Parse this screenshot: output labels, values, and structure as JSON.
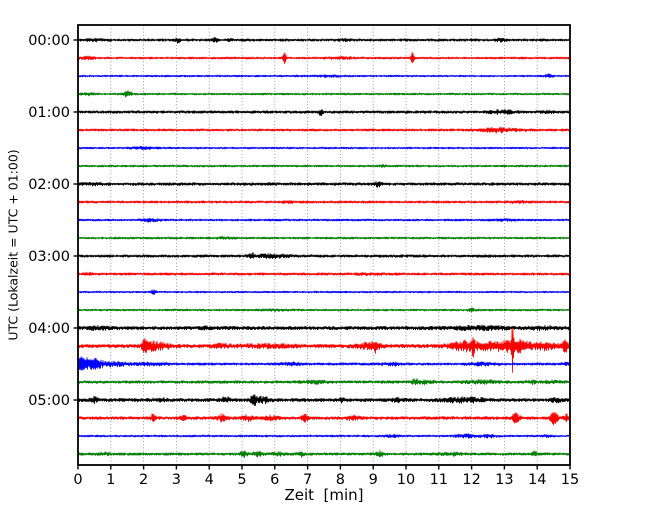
{
  "figure": {
    "background": "#ffffff"
  },
  "chart_data": {
    "type": "line",
    "subtype": "helicorder-seismogram-drum-plot",
    "title": "",
    "xlabel": "Zeit  [min]",
    "ylabel": "UTC (Lokalzeit = UTC + 01:00)",
    "xlim": [
      0,
      15
    ],
    "minutes_per_line": 15,
    "x_ticks": [
      0,
      1,
      2,
      3,
      4,
      5,
      6,
      7,
      8,
      9,
      10,
      11,
      12,
      13,
      14,
      15
    ],
    "y_tick_labels": [
      "00:00",
      "01:00",
      "02:00",
      "03:00",
      "04:00",
      "05:00"
    ],
    "grid": {
      "vertical": true,
      "horizontal": false,
      "style": "dotted",
      "color": "#8c8c8c"
    },
    "legend": "none",
    "trace_color_cycle": [
      "#000000",
      "#ff0000",
      "#0000ff",
      "#007f00"
    ],
    "traces": [
      {
        "start": "00:00",
        "color": "#000000",
        "base_amp": 1.25,
        "events": [
          [
            0.5,
            0.8,
            0.4
          ],
          [
            3.05,
            2.3,
            0.08
          ],
          [
            4.2,
            2.2,
            0.1
          ],
          [
            4.65,
            1.2,
            0.08
          ],
          [
            8.2,
            0.8,
            0.2
          ],
          [
            12.9,
            0.9,
            0.2
          ]
        ]
      },
      {
        "start": "00:15",
        "color": "#ff0000",
        "base_amp": 1.05,
        "events": [
          [
            0.3,
            1.2,
            0.2
          ],
          [
            6.3,
            6.0,
            0.05
          ],
          [
            8.0,
            0.8,
            0.4
          ],
          [
            10.2,
            5.5,
            0.05
          ]
        ]
      },
      {
        "start": "00:30",
        "color": "#0000ff",
        "base_amp": 0.9,
        "events": [
          [
            7.5,
            0.6,
            0.6
          ],
          [
            14.35,
            2.2,
            0.1
          ]
        ]
      },
      {
        "start": "00:45",
        "color": "#007f00",
        "base_amp": 1.0,
        "events": [
          [
            0.3,
            0.9,
            0.2
          ],
          [
            1.5,
            3.0,
            0.12
          ]
        ]
      },
      {
        "start": "01:00",
        "color": "#000000",
        "base_amp": 1.35,
        "events": [
          [
            7.4,
            3.2,
            0.06
          ],
          [
            12.9,
            1.4,
            0.35
          ],
          [
            14.3,
            0.9,
            0.2
          ]
        ]
      },
      {
        "start": "01:15",
        "color": "#ff0000",
        "base_amp": 1.15,
        "events": [
          [
            12.8,
            1.9,
            0.6
          ]
        ]
      },
      {
        "start": "01:30",
        "color": "#0000ff",
        "base_amp": 0.95,
        "events": [
          [
            2.0,
            0.8,
            0.4
          ]
        ]
      },
      {
        "start": "01:45",
        "color": "#007f00",
        "base_amp": 1.0,
        "events": [
          [
            9.3,
            0.9,
            0.12
          ]
        ]
      },
      {
        "start": "02:00",
        "color": "#000000",
        "base_amp": 1.45,
        "events": [
          [
            0.4,
            0.7,
            0.3
          ],
          [
            9.15,
            2.6,
            0.08
          ]
        ]
      },
      {
        "start": "02:15",
        "color": "#ff0000",
        "base_amp": 1.15,
        "events": [
          [
            6.4,
            1.0,
            0.15
          ],
          [
            13.5,
            0.7,
            0.3
          ]
        ]
      },
      {
        "start": "02:30",
        "color": "#0000ff",
        "base_amp": 1.0,
        "events": [
          [
            2.2,
            1.2,
            0.3
          ],
          [
            13.0,
            0.6,
            0.4
          ]
        ]
      },
      {
        "start": "02:45",
        "color": "#007f00",
        "base_amp": 1.05,
        "events": [
          [
            4.5,
            0.6,
            0.3
          ]
        ]
      },
      {
        "start": "03:00",
        "color": "#000000",
        "base_amp": 1.35,
        "events": [
          [
            5.3,
            3.3,
            0.07
          ],
          [
            5.9,
            1.3,
            0.5
          ]
        ]
      },
      {
        "start": "03:15",
        "color": "#ff0000",
        "base_amp": 1.2,
        "events": [
          [
            0.3,
            0.9,
            0.15
          ],
          [
            9.0,
            0.6,
            0.5
          ]
        ]
      },
      {
        "start": "03:30",
        "color": "#0000ff",
        "base_amp": 0.9,
        "events": [
          [
            2.3,
            2.8,
            0.08
          ]
        ]
      },
      {
        "start": "03:45",
        "color": "#007f00",
        "base_amp": 1.0,
        "events": [
          [
            6.0,
            0.6,
            0.4
          ],
          [
            12.0,
            1.7,
            0.1
          ]
        ]
      },
      {
        "start": "04:00",
        "color": "#000000",
        "base_amp": 1.8,
        "events": [
          [
            0.6,
            1.1,
            0.3
          ],
          [
            3.9,
            1.2,
            0.15
          ],
          [
            12.2,
            1.4,
            0.8
          ],
          [
            14.2,
            1.1,
            0.4
          ]
        ]
      },
      {
        "start": "04:15",
        "color": "#ff0000",
        "base_amp": 1.8,
        "events": [
          [
            2.0,
            7.5,
            0.05
          ],
          [
            2.15,
            4.5,
            0.15
          ],
          [
            2.5,
            3.5,
            0.3
          ],
          [
            4.3,
            1.2,
            0.3
          ],
          [
            5.8,
            1.2,
            0.8
          ],
          [
            8.9,
            2.5,
            0.4
          ],
          [
            9.05,
            4.0,
            0.08
          ],
          [
            11.7,
            3.0,
            0.3
          ],
          [
            12.05,
            10,
            0.035
          ],
          [
            12.5,
            3.5,
            0.9
          ],
          [
            13.25,
            24,
            0.028
          ],
          [
            13.4,
            4.5,
            0.45
          ],
          [
            14.3,
            3.5,
            0.3
          ],
          [
            14.85,
            6.0,
            0.09
          ]
        ]
      },
      {
        "start": "04:30",
        "color": "#0000ff",
        "base_amp": 1.2,
        "events": [
          [
            0.1,
            7.0,
            0.2
          ],
          [
            0.5,
            4.5,
            0.25
          ],
          [
            1.1,
            2.3,
            0.35
          ],
          [
            2.2,
            1.0,
            0.5
          ],
          [
            6.5,
            1.3,
            0.3
          ],
          [
            9.6,
            1.3,
            0.3
          ],
          [
            12.3,
            1.1,
            0.5
          ],
          [
            14.9,
            0.9,
            0.2
          ]
        ]
      },
      {
        "start": "04:45",
        "color": "#007f00",
        "base_amp": 1.4,
        "events": [
          [
            7.2,
            1.2,
            0.3
          ],
          [
            10.25,
            3.3,
            0.1
          ],
          [
            10.55,
            1.8,
            0.25
          ],
          [
            12.3,
            1.4,
            0.5
          ],
          [
            13.85,
            1.7,
            0.12
          ],
          [
            14.4,
            1.1,
            0.2
          ]
        ]
      },
      {
        "start": "05:00",
        "color": "#000000",
        "base_amp": 1.7,
        "events": [
          [
            0.5,
            2.3,
            0.1
          ],
          [
            2.5,
            1.3,
            0.2
          ],
          [
            4.5,
            2.8,
            0.12
          ],
          [
            5.35,
            5.0,
            0.1
          ],
          [
            5.65,
            2.5,
            0.2
          ],
          [
            8.0,
            1.8,
            0.1
          ],
          [
            9.7,
            1.3,
            0.2
          ],
          [
            11.5,
            1.8,
            0.4
          ],
          [
            12.1,
            1.6,
            0.3
          ],
          [
            14.6,
            1.3,
            0.2
          ]
        ]
      },
      {
        "start": "05:15",
        "color": "#ff0000",
        "base_amp": 1.5,
        "events": [
          [
            2.3,
            4.2,
            0.07
          ],
          [
            3.2,
            2.2,
            0.1
          ],
          [
            4.4,
            3.0,
            0.15
          ],
          [
            5.2,
            2.6,
            0.15
          ],
          [
            5.9,
            1.8,
            0.2
          ],
          [
            6.9,
            3.2,
            0.1
          ],
          [
            8.4,
            1.4,
            0.2
          ],
          [
            13.35,
            5.5,
            0.1
          ],
          [
            14.5,
            6.0,
            0.12
          ],
          [
            14.9,
            2.8,
            0.1
          ]
        ]
      },
      {
        "start": "05:30",
        "color": "#0000ff",
        "base_amp": 1.0,
        "events": [
          [
            9.6,
            1.2,
            0.2
          ],
          [
            11.8,
            1.5,
            0.3
          ],
          [
            12.5,
            1.3,
            0.25
          ],
          [
            14.3,
            0.8,
            0.2
          ]
        ]
      },
      {
        "start": "05:45",
        "color": "#007f00",
        "base_amp": 1.3,
        "events": [
          [
            0.8,
            0.9,
            0.2
          ],
          [
            5.05,
            3.0,
            0.1
          ],
          [
            5.45,
            2.0,
            0.15
          ],
          [
            6.1,
            1.4,
            0.2
          ],
          [
            6.8,
            2.0,
            0.1
          ],
          [
            9.2,
            2.6,
            0.1
          ],
          [
            11.4,
            1.1,
            0.3
          ],
          [
            13.9,
            2.0,
            0.08
          ]
        ]
      }
    ]
  }
}
